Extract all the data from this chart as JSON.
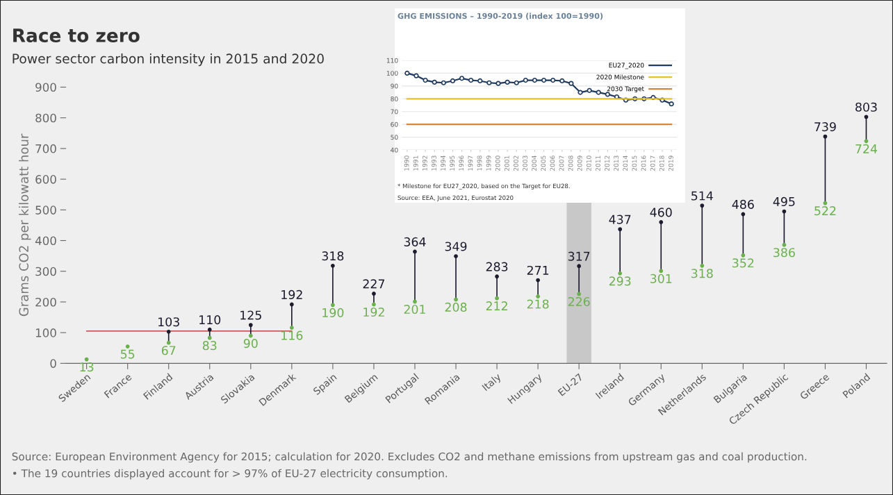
{
  "chart_data": [
    {
      "type": "scatter",
      "title": "Race to zero",
      "subtitle": "Power sector carbon intensity in 2015 and 2020",
      "ylabel": "Grams CO2 per kilowatt hour",
      "categories": [
        "Sweden",
        "France",
        "Finland",
        "Austria",
        "Slovakia",
        "Denmark",
        "Spain",
        "Belgium",
        "Portugal",
        "Romania",
        "Italy",
        "Hungary",
        "EU-27",
        "Ireland",
        "Germany",
        "Netherlands",
        "Bulgaria",
        "Czech Republic",
        "Greece",
        "Poland"
      ],
      "series": [
        {
          "color": "#1c1c2e",
          "values": [
            null,
            null,
            103,
            110,
            125,
            192,
            318,
            227,
            364,
            349,
            283,
            271,
            317,
            437,
            460,
            514,
            486,
            495,
            739,
            803
          ],
          "value_labels": [
            null,
            null,
            "103",
            "110",
            "125",
            "192",
            "318",
            "227",
            "364",
            "349",
            "283",
            "271",
            "317",
            "437",
            "460",
            "514",
            "486",
            "495",
            "739",
            "803"
          ]
        },
        {
          "color": "#6ab04c",
          "values": [
            13,
            55,
            67,
            83,
            90,
            116,
            190,
            192,
            201,
            208,
            212,
            218,
            226,
            293,
            301,
            318,
            352,
            386,
            522,
            724
          ],
          "value_labels": [
            "13",
            "55",
            "67",
            "83",
            "90",
            "116",
            "190",
            "192",
            "201",
            "208",
            "212",
            "218",
            "226",
            "293",
            "301",
            "318",
            "352",
            "386",
            "522",
            "724"
          ]
        },
        {
          "type": "line",
          "color": "#b22222",
          "marker": "none",
          "values": [
            105,
            105,
            105,
            105,
            105,
            105,
            null,
            null,
            null,
            null,
            null,
            null,
            null,
            null,
            null,
            null,
            null,
            null,
            null,
            null
          ]
        }
      ],
      "bands": [
        {
          "axis": "x",
          "from": "EU-27",
          "to": "EU-27",
          "color": "#c8c8c8"
        }
      ],
      "ylim": [
        0,
        900
      ],
      "yticks": [
        0,
        100,
        200,
        300,
        400,
        500,
        600,
        700,
        800,
        900
      ],
      "marker": "circle",
      "legend": false,
      "grid": false,
      "annotations": [
        "Source: European Environment Agency for 2015; calculation for 2020. Excludes CO2 and methane emissions from upstream gas and coal production.",
        "• The 19 countries displayed account for > 97% of EU-27 electricity consumption."
      ]
    },
    {
      "type": "line",
      "title": "GHG EMISSIONS – 1990-2019 (index 100=1990)",
      "categories": [
        "1990",
        "1991",
        "1992",
        "1993",
        "1994",
        "1995",
        "1996",
        "1997",
        "1998",
        "1999",
        "2000",
        "2001",
        "2002",
        "2003",
        "2004",
        "2005",
        "2006",
        "2007",
        "2008",
        "2009",
        "2010",
        "2011",
        "2012",
        "2013",
        "2014",
        "2015",
        "2016",
        "2017",
        "2018",
        "2019"
      ],
      "series": [
        {
          "name": "EU27_2020",
          "color": "#1f3a5f",
          "marker": "circle",
          "values": [
            100,
            98,
            94.5,
            93,
            92.5,
            94,
            96,
            94.5,
            94,
            92.5,
            92,
            93,
            92.5,
            94.5,
            94.5,
            94.5,
            94.5,
            94,
            92,
            85,
            86.5,
            85,
            83.5,
            81.5,
            79,
            80,
            80,
            81,
            79,
            76
          ]
        },
        {
          "name": "2020 Milestone",
          "color": "#e6c229",
          "values": [
            80,
            80,
            80,
            80,
            80,
            80,
            80,
            80,
            80,
            80,
            80,
            80,
            80,
            80,
            80,
            80,
            80,
            80,
            80,
            80,
            80,
            80,
            80,
            80,
            80,
            80,
            80,
            80,
            80,
            80
          ]
        },
        {
          "name": "2030 Target",
          "color": "#d4873a",
          "values": [
            60,
            60,
            60,
            60,
            60,
            60,
            60,
            60,
            60,
            60,
            60,
            60,
            60,
            60,
            60,
            60,
            60,
            60,
            60,
            60,
            60,
            60,
            60,
            60,
            60,
            60,
            60,
            60,
            60,
            60
          ]
        }
      ],
      "ylim": [
        40,
        110
      ],
      "yticks": [
        40,
        50,
        60,
        70,
        80,
        90,
        100,
        110
      ],
      "grid": "y",
      "legend": "top right",
      "annotations": [
        "* Milestone for EU27_2020, based on the Target for EU28.",
        "Source: EEA, June 2021, Eurostat 2020"
      ]
    }
  ]
}
